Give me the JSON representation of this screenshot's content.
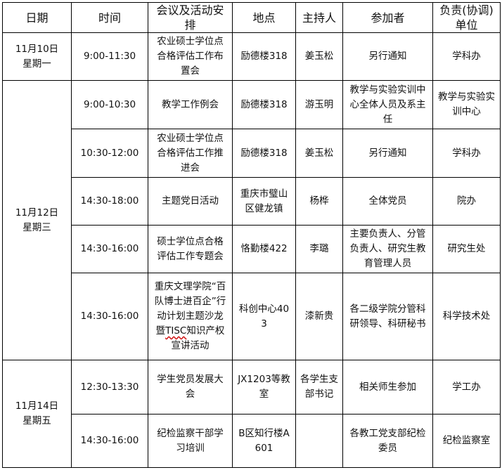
{
  "headers": [
    "日期",
    "时间",
    "会议及活动安排",
    "地点",
    "主持人",
    "参加者",
    "负责(协调)单位"
  ],
  "groups": [
    {
      "date": "11月10日",
      "weekday": "星期一",
      "rows": [
        {
          "time": "9:00-11:30",
          "event": "农业硕士学位点合格评估工作布置会",
          "location": "励德楼318",
          "host": "姜玉松",
          "participants": "另行通知",
          "unit": "学科办"
        }
      ]
    },
    {
      "date": "11月12日",
      "weekday": "星期三",
      "rows": [
        {
          "time": "9:00-10:30",
          "event": "教学工作例会",
          "location": "励德楼318",
          "host": "游玉明",
          "participants": "教学与实验实训中心全体人员及系主任",
          "unit": "教学与实验实训中心"
        },
        {
          "time": "10:30-12:00",
          "event": "农业硕士学位点合格评估工作推进会",
          "location": "励德楼318",
          "host": "姜玉松",
          "participants": "另行通知",
          "unit": "学科办"
        },
        {
          "time": "14:30-18:00",
          "event": "主题党日活动",
          "location": "重庆市璧山区健龙镇",
          "host": "杨桦",
          "participants": "全体党员",
          "unit": "院办"
        },
        {
          "time": "14:30-16:00",
          "event": "硕士学位点合格评估工作专题会",
          "location": "恪勤楼422",
          "host": "李璐",
          "participants": "主要负责人、分管负责人、研究生教育管理人员",
          "unit": "研究生处"
        },
        {
          "time": "14:30-16:00",
          "event": "重庆文理学院“百队博士进百企”行动计划主题沙龙暨TISC知识产权宣讲活动",
          "location": "科创中心403",
          "host": "漆新贵",
          "participants": "各二级学院分管科研领导、科研秘书",
          "unit": "科学技术处"
        }
      ]
    },
    {
      "date": "11月14日",
      "weekday": "星期五",
      "rows": [
        {
          "time": "12:30-13:30",
          "event": "学生党员发展大会",
          "location": "JX1203等教室",
          "host": "各学生支部书记",
          "participants": "相关师生参加",
          "unit": "学工办"
        },
        {
          "time": "14:30-16:00",
          "event": "纪检监察干部学习培训",
          "location": "B区知行楼A601",
          "host": "",
          "participants": "各教工党支部纪检委员",
          "unit": "纪检监察室"
        }
      ]
    }
  ]
}
